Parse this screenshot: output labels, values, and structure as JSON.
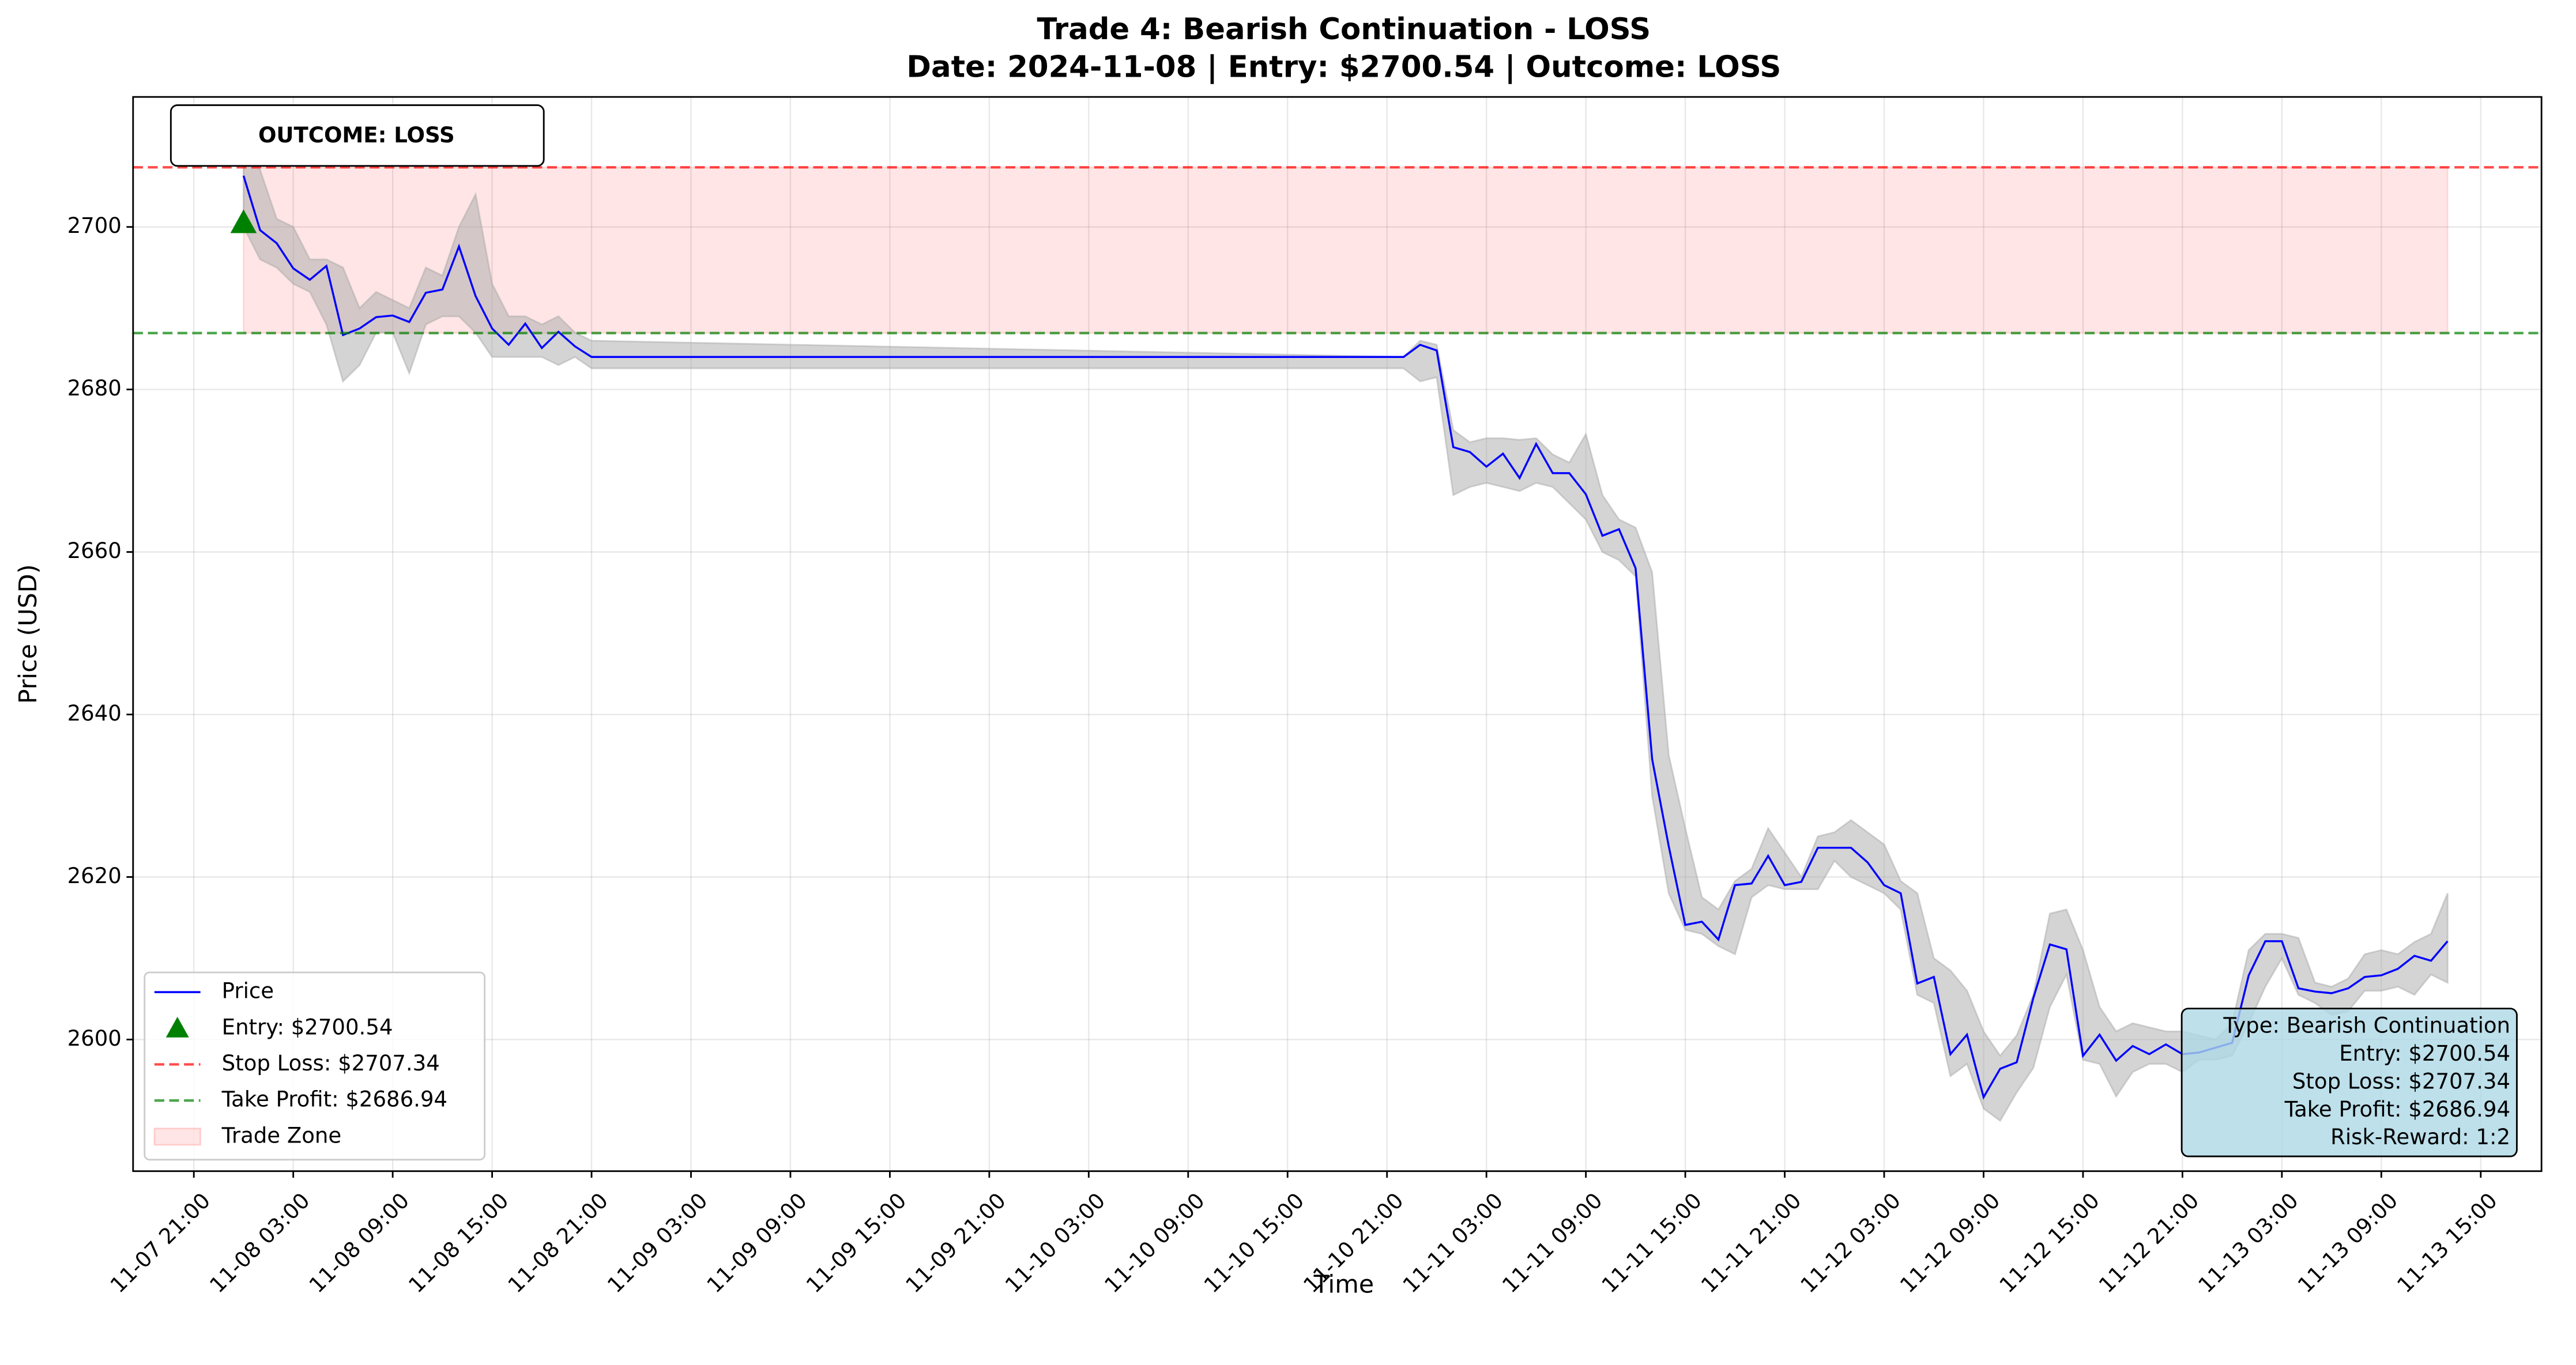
{
  "chart_data": {
    "type": "line",
    "title": "Trade 4: Bearish Continuation - LOSS",
    "subtitle": "Date: 2024-11-08 | Entry: $2700.54 | Outcome: LOSS",
    "xlabel": "Time",
    "ylabel": "Price (USD)",
    "x": [
      "11-08 00:00",
      "11-08 01:00",
      "11-08 02:00",
      "11-08 03:00",
      "11-08 04:00",
      "11-08 05:00",
      "11-08 06:00",
      "11-08 07:00",
      "11-08 08:00",
      "11-08 09:00",
      "11-08 10:00",
      "11-08 11:00",
      "11-08 12:00",
      "11-08 13:00",
      "11-08 14:00",
      "11-08 15:00",
      "11-08 16:00",
      "11-08 17:00",
      "11-08 18:00",
      "11-08 19:00",
      "11-08 20:00",
      "11-08 21:00",
      "11-10 22:00",
      "11-10 23:00",
      "11-11 00:00",
      "11-11 01:00",
      "11-11 02:00",
      "11-11 03:00",
      "11-11 04:00",
      "11-11 05:00",
      "11-11 06:00",
      "11-11 07:00",
      "11-11 08:00",
      "11-11 09:00",
      "11-11 10:00",
      "11-11 11:00",
      "11-11 12:00",
      "11-11 13:00",
      "11-11 14:00",
      "11-11 15:00",
      "11-11 16:00",
      "11-11 17:00",
      "11-11 18:00",
      "11-11 19:00",
      "11-11 20:00",
      "11-11 21:00",
      "11-11 22:00",
      "11-11 23:00",
      "11-12 00:00",
      "11-12 01:00",
      "11-12 02:00",
      "11-12 03:00",
      "11-12 04:00",
      "11-12 05:00",
      "11-12 06:00",
      "11-12 07:00",
      "11-12 08:00",
      "11-12 09:00",
      "11-12 10:00",
      "11-12 11:00",
      "11-12 12:00",
      "11-12 13:00",
      "11-12 14:00",
      "11-12 15:00",
      "11-12 16:00",
      "11-12 17:00",
      "11-12 18:00",
      "11-12 19:00",
      "11-12 20:00",
      "11-12 21:00",
      "11-12 22:00",
      "11-12 23:00",
      "11-13 00:00",
      "11-13 01:00",
      "11-13 02:00",
      "11-13 03:00",
      "11-13 04:00",
      "11-13 05:00",
      "11-13 06:00",
      "11-13 07:00",
      "11-13 08:00",
      "11-13 09:00",
      "11-13 10:00",
      "11-13 11:00",
      "11-13 12:00",
      "11-13 13:00"
    ],
    "series": [
      {
        "name": "Price",
        "color": "#0000ff",
        "values": [
          2706.3,
          2699.6,
          2698.0,
          2694.9,
          2693.5,
          2695.2,
          2686.7,
          2687.5,
          2688.9,
          2689.1,
          2688.3,
          2691.9,
          2692.3,
          2697.6,
          2691.5,
          2687.5,
          2685.5,
          2688.1,
          2685.1,
          2687.1,
          2685.3,
          2684.0,
          2684.0,
          2685.5,
          2684.8,
          2672.9,
          2672.3,
          2670.5,
          2672.1,
          2669.1,
          2673.3,
          2669.7,
          2669.7,
          2667.1,
          2662.0,
          2662.8,
          2658.0,
          2634.5,
          2623.8,
          2614.1,
          2614.5,
          2612.3,
          2619.0,
          2619.2,
          2622.6,
          2619.0,
          2619.4,
          2623.6,
          2623.6,
          2623.6,
          2621.8,
          2619.0,
          2618.0,
          2606.9,
          2607.7,
          2598.2,
          2600.6,
          2592.9,
          2596.4,
          2597.2,
          2605.1,
          2611.7,
          2611.1,
          2598.0,
          2600.6,
          2597.4,
          2599.2,
          2598.2,
          2599.4,
          2598.2,
          2598.4,
          2599.0,
          2599.6,
          2607.9,
          2612.1,
          2612.1,
          2606.3,
          2605.9,
          2605.7,
          2606.3,
          2607.7,
          2607.9,
          2608.7,
          2610.3,
          2609.7,
          2612.1
        ]
      }
    ],
    "band": {
      "color": "#a9a9a9",
      "high": [
        2710,
        2707,
        2701,
        2700,
        2696,
        2696,
        2695,
        2690,
        2692,
        2691,
        2690,
        2695,
        2694,
        2700,
        2704,
        2693,
        2689,
        2689,
        2688,
        2689,
        2687,
        2686,
        2684.0,
        2686.0,
        2685.5,
        2675.0,
        2673.5,
        2674.0,
        2674.0,
        2673.8,
        2674.0,
        2672.0,
        2671.0,
        2674.5,
        2667.0,
        2664.0,
        2663.0,
        2657.5,
        2635.0,
        2626.0,
        2617.5,
        2616.0,
        2619.5,
        2621.0,
        2626.0,
        2623.0,
        2620.0,
        2625.0,
        2625.5,
        2627.0,
        2625.5,
        2624.0,
        2619.5,
        2618.0,
        2610.0,
        2608.5,
        2606.0,
        2601.0,
        2598.0,
        2600.5,
        2605.5,
        2615.5,
        2616.0,
        2611.0,
        2604.0,
        2601.0,
        2602.0,
        2601.5,
        2601.0,
        2601.0,
        2600.5,
        2600.0,
        2602.0,
        2611.0,
        2613.0,
        2613.0,
        2612.5,
        2607.0,
        2606.5,
        2607.5,
        2610.5,
        2611.0,
        2610.5,
        2612.0,
        2613.0,
        2618.0
      ],
      "low": [
        2700,
        2696,
        2695,
        2693,
        2692,
        2688,
        2681,
        2683,
        2687,
        2687,
        2682,
        2688,
        2689,
        2689,
        2687,
        2684,
        2684,
        2684,
        2684,
        2683,
        2684,
        2682.6,
        2682.6,
        2681.0,
        2681.5,
        2667.0,
        2668.0,
        2668.5,
        2668.0,
        2667.5,
        2668.5,
        2668.0,
        2666.0,
        2664.0,
        2660.0,
        2659.0,
        2657.0,
        2630.0,
        2618.0,
        2613.5,
        2613.0,
        2611.5,
        2610.5,
        2617.5,
        2619.0,
        2618.5,
        2618.5,
        2618.5,
        2622.0,
        2620.0,
        2619.0,
        2618.0,
        2616.0,
        2605.5,
        2604.5,
        2595.5,
        2597.0,
        2591.5,
        2590.0,
        2593.5,
        2596.5,
        2604.0,
        2608.0,
        2597.5,
        2597.0,
        2593.0,
        2596.0,
        2597.0,
        2597.0,
        2596.0,
        2597.5,
        2597.5,
        2598.0,
        2602.0,
        2606.5,
        2610.0,
        2605.5,
        2604.5,
        2603.0,
        2603.5,
        2606.0,
        2606.0,
        2606.5,
        2605.5,
        2608.0,
        2607.0
      ]
    },
    "entry": {
      "x": "11-08 00:00",
      "value": 2700.54,
      "label": "Entry: $2700.54",
      "color": "#008000"
    },
    "stop_loss": {
      "value": 2707.34,
      "label": "Stop Loss: $2707.34",
      "color": "#ff0000"
    },
    "take_profit": {
      "value": 2686.94,
      "label": "Take Profit: $2686.94",
      "color": "#008000"
    },
    "trade_zone": {
      "x_start": "11-08 00:00",
      "x_end": "11-13 13:00",
      "label": "Trade Zone",
      "color": "#ff0000"
    },
    "outcome_label": "OUTCOME: LOSS",
    "info_box": [
      "Type: Bearish Continuation",
      "Entry: $2700.54",
      "Stop Loss: $2707.34",
      "Take Profit: $2686.94",
      "Risk-Reward: 1:2"
    ],
    "xlim": [
      "11-07 17:20",
      "11-13 18:40"
    ],
    "xticks": [
      "11-07 21:00",
      "11-08 03:00",
      "11-08 09:00",
      "11-08 15:00",
      "11-08 21:00",
      "11-09 03:00",
      "11-09 09:00",
      "11-09 15:00",
      "11-09 21:00",
      "11-10 03:00",
      "11-10 09:00",
      "11-10 15:00",
      "11-10 21:00",
      "11-11 03:00",
      "11-11 09:00",
      "11-11 15:00",
      "11-11 21:00",
      "11-12 03:00",
      "11-12 09:00",
      "11-12 15:00",
      "11-12 21:00",
      "11-13 03:00",
      "11-13 09:00",
      "11-13 15:00"
    ],
    "ylim": [
      2583.8,
      2716.0
    ],
    "yticks": [
      2600,
      2620,
      2640,
      2660,
      2680,
      2700
    ],
    "grid": true,
    "legend": "lower left"
  }
}
